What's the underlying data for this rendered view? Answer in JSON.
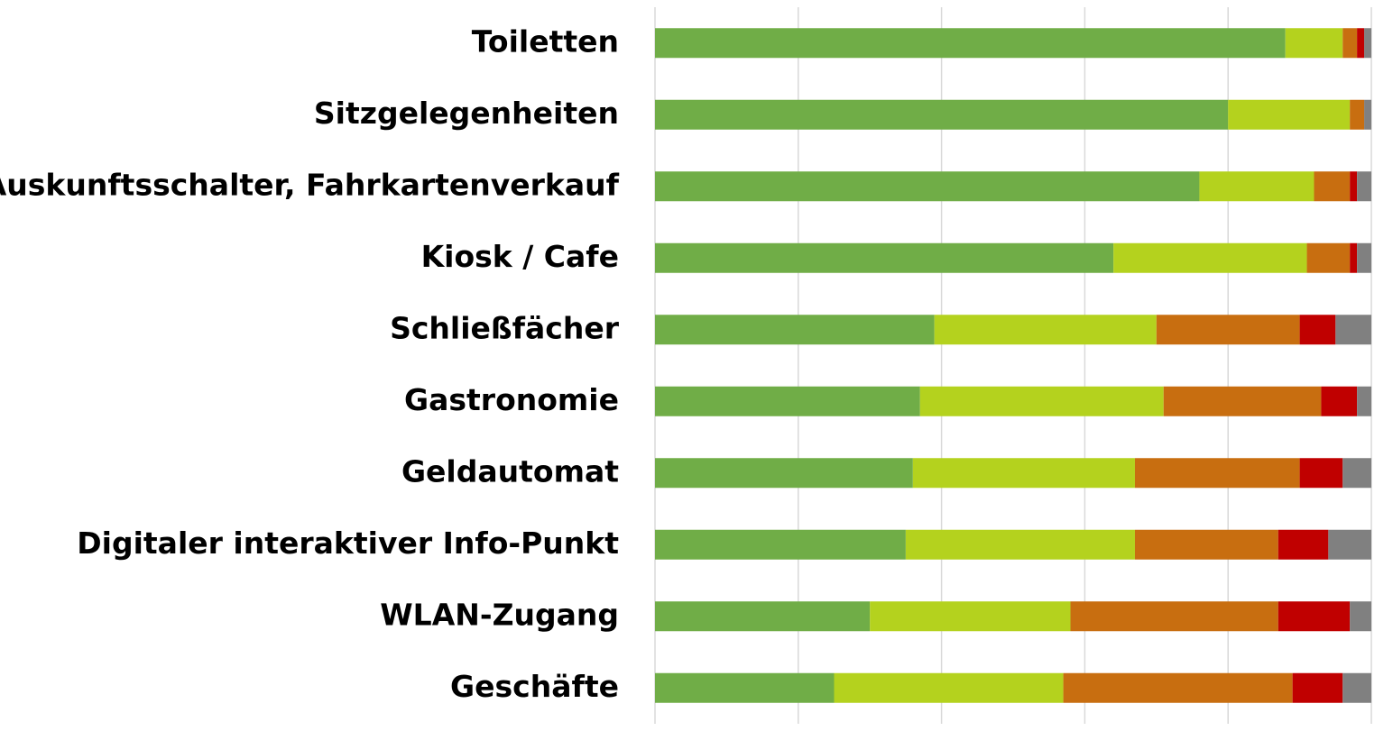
{
  "chart_data": {
    "type": "stacked-barh",
    "categories": [
      "Toiletten",
      "Sitzgelegenheiten",
      "Auskunftsschalter, Fahrkartenverkauf",
      "Kiosk / Cafe ",
      "Schließfächer",
      "Gastronomie",
      "Geldautomat",
      "Digitaler interaktiver Info-Punkt",
      "WLAN-Zugang",
      "Geschäfte"
    ],
    "series": [
      {
        "color": "#70ad47",
        "values": [
          88,
          80,
          76,
          64,
          39,
          37,
          36,
          35,
          30,
          25
        ]
      },
      {
        "color": "#b4d21e",
        "values": [
          8,
          17,
          16,
          27,
          31,
          34,
          31,
          32,
          28,
          32
        ]
      },
      {
        "color": "#c86e10",
        "values": [
          2,
          2,
          5,
          6,
          20,
          22,
          23,
          20,
          29,
          32
        ]
      },
      {
        "color": "#c00000",
        "values": [
          1,
          0,
          1,
          1,
          5,
          5,
          6,
          7,
          10,
          7
        ]
      },
      {
        "color": "#808080",
        "values": [
          1,
          1,
          2,
          2,
          5,
          2,
          4,
          6,
          3,
          4
        ]
      }
    ],
    "xlim": [
      0,
      100
    ],
    "xticks": [
      0,
      20,
      40,
      60,
      80,
      100
    ],
    "grid": true
  }
}
